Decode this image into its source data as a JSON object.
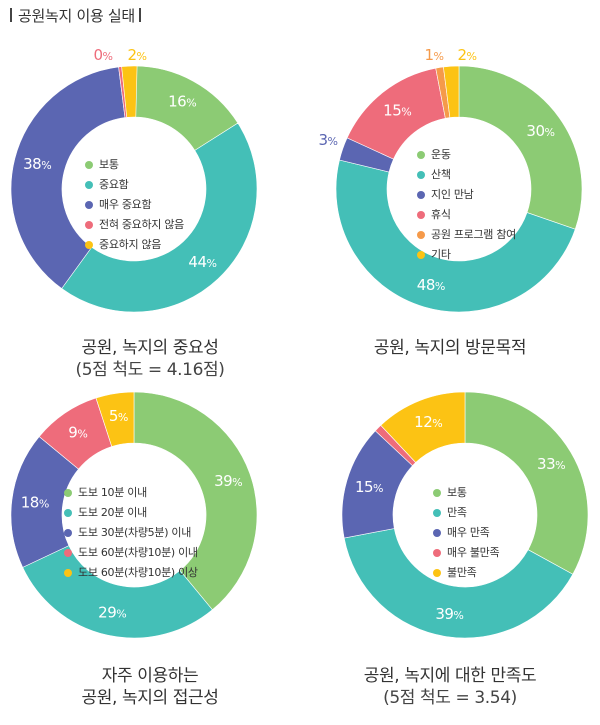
{
  "header": {
    "title": "공원녹지 이용 실태"
  },
  "colors": {
    "green": "#8ccb74",
    "teal": "#44bfb7",
    "purple": "#5b66b2",
    "pink": "#ee6c7b",
    "orange": "#f59a4a",
    "yellow": "#fcc314"
  },
  "chart_data": [
    {
      "type": "pie",
      "donut": true,
      "title": "공원, 녹지의 중요성",
      "subtitle": "(5점 척도 = 4.16점)",
      "categories": [
        "보통",
        "중요함",
        "매우 중요함",
        "전혀 중요하지 않음",
        "중요하지 않음"
      ],
      "values": [
        16,
        44,
        38,
        0,
        2
      ],
      "value_labels": [
        "16",
        "44",
        "38",
        "0",
        "2"
      ],
      "unit": "%",
      "colors": [
        "#8ccb74",
        "#44bfb7",
        "#5b66b2",
        "#ee6c7b",
        "#fcc314"
      ]
    },
    {
      "type": "pie",
      "donut": true,
      "title": "공원, 녹지의 방문목적",
      "subtitle": "",
      "categories": [
        "운동",
        "산책",
        "지인 만남",
        "휴식",
        "공원 프로그램 참여",
        "기타"
      ],
      "values": [
        30,
        48,
        3,
        15,
        1,
        2
      ],
      "value_labels": [
        "30",
        "48",
        "3",
        "15",
        "1",
        "2"
      ],
      "unit": "%",
      "colors": [
        "#8ccb74",
        "#44bfb7",
        "#5b66b2",
        "#ee6c7b",
        "#f59a4a",
        "#fcc314"
      ]
    },
    {
      "type": "pie",
      "donut": true,
      "title": "자주 이용하는",
      "subtitle": "공원, 녹지의 접근성",
      "categories": [
        "도보 10분 이내",
        "도보 20분 이내",
        "도보 30분(차량5분) 이내",
        "도보 60분(차량10분) 이내",
        "도보 60분(차량10분) 이상"
      ],
      "values": [
        39,
        29,
        18,
        9,
        5
      ],
      "value_labels": [
        "39",
        "29",
        "18",
        "9",
        "5"
      ],
      "unit": "%",
      "colors": [
        "#8ccb74",
        "#44bfb7",
        "#5b66b2",
        "#ee6c7b",
        "#fcc314"
      ]
    },
    {
      "type": "pie",
      "donut": true,
      "title": "공원, 녹지에 대한 만족도",
      "subtitle": "(5점 척도 = 3.54)",
      "categories": [
        "보통",
        "만족",
        "매우 만족",
        "매우 불만족",
        "불만족"
      ],
      "values": [
        33,
        39,
        15,
        1,
        12
      ],
      "value_labels": [
        "33",
        "39",
        "15",
        "",
        "12"
      ],
      "unit": "%",
      "colors": [
        "#8ccb74",
        "#44bfb7",
        "#5b66b2",
        "#ee6c7b",
        "#fcc314"
      ]
    }
  ]
}
